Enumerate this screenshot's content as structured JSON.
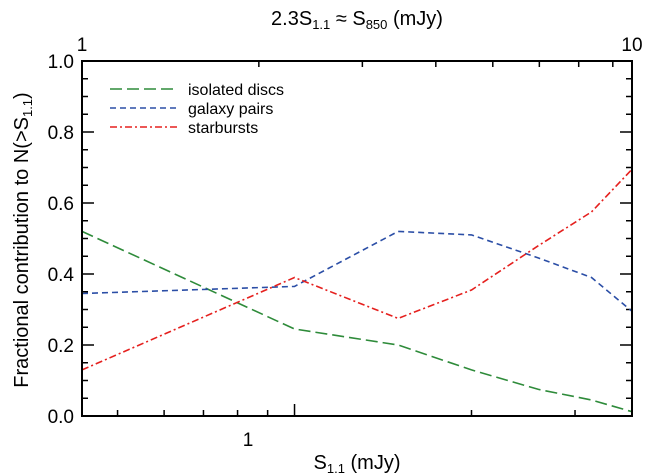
{
  "chart_data": {
    "type": "line",
    "xscale": "log",
    "xlim": [
      0.435,
      3.75
    ],
    "ylim": [
      0.0,
      1.0
    ],
    "xlabel_main": "S",
    "xlabel_sub": "1.1",
    "xlabel_unit": " (mJy)",
    "ylabel_main": "Fractional contribution to N(>S",
    "ylabel_sub": "1.1",
    "ylabel_end": ")",
    "top_axis": {
      "label_pre": "2.3S",
      "label_sub1": "1.1",
      "label_mid": " ≈ S",
      "label_sub2": "850",
      "label_post": " (mJy)",
      "tick_labels": [
        "1",
        "10"
      ]
    },
    "x_tick_labels": [
      "1"
    ],
    "y_tick_labels": [
      "0.0",
      "0.2",
      "0.4",
      "0.6",
      "0.8",
      "1.0"
    ],
    "legend_position": "top-left",
    "series": [
      {
        "name": "isolated discs",
        "color": "#2e8b3a",
        "x": [
          0.435,
          1.0,
          1.5,
          2.0,
          2.6,
          3.2,
          3.75
        ],
        "y": [
          0.52,
          0.245,
          0.2,
          0.13,
          0.075,
          0.045,
          0.012
        ]
      },
      {
        "name": "galaxy pairs",
        "color": "#2b4ea6",
        "x": [
          0.435,
          1.0,
          1.5,
          2.0,
          2.6,
          3.2,
          3.75
        ],
        "y": [
          0.345,
          0.365,
          0.52,
          0.51,
          0.445,
          0.39,
          0.295
        ]
      },
      {
        "name": "starbursts",
        "color": "#e5201e",
        "x": [
          0.435,
          1.0,
          1.5,
          2.0,
          2.6,
          3.2,
          3.75
        ],
        "y": [
          0.13,
          0.39,
          0.275,
          0.355,
          0.48,
          0.575,
          0.695
        ]
      }
    ]
  }
}
